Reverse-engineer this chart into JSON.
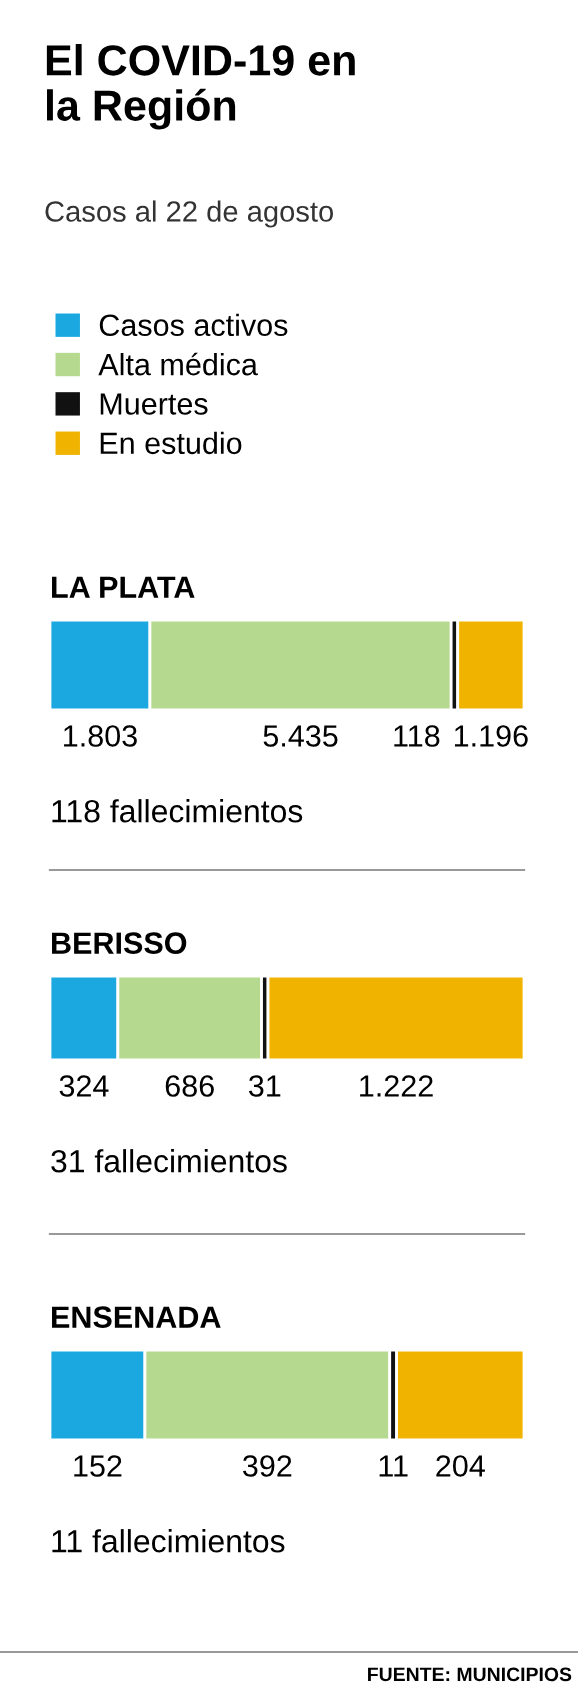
{
  "chart_data": [
    {
      "type": "bar",
      "orientation": "horizontal",
      "stacked": true,
      "title": "El COVID-19 en la Región",
      "subtitle": "Casos al 22 de agosto",
      "categories": [
        "LA PLATA"
      ],
      "legend": "top",
      "tick_labels": "y",
      "series": [
        {
          "name": "Casos activos",
          "color": "#1ba8e0",
          "values": [
            1803
          ],
          "value_labels": [
            "1.803"
          ]
        },
        {
          "name": "Alta médica",
          "color": "#b5da8f",
          "values": [
            5435
          ],
          "value_labels": [
            "5.435"
          ]
        },
        {
          "name": "Muertes",
          "color": "#111111",
          "values": [
            118
          ],
          "value_labels": [
            "118"
          ]
        },
        {
          "name": "En estudio",
          "color": "#f0b400",
          "values": [
            1196
          ],
          "value_labels": [
            "1.196"
          ]
        }
      ],
      "annotations": [
        "118 fallecimientos"
      ]
    },
    {
      "type": "bar",
      "orientation": "horizontal",
      "stacked": true,
      "categories": [
        "BERISSO"
      ],
      "tick_labels": "y",
      "series": [
        {
          "color": "#1ba8e0",
          "values": [
            324
          ],
          "value_labels": [
            "324"
          ]
        },
        {
          "color": "#b5da8f",
          "values": [
            686
          ],
          "value_labels": [
            "686"
          ]
        },
        {
          "color": "#111111",
          "values": [
            31
          ],
          "value_labels": [
            "31"
          ]
        },
        {
          "color": "#f0b400",
          "values": [
            1222
          ],
          "value_labels": [
            "1.222"
          ]
        }
      ],
      "annotations": [
        "31 fallecimientos"
      ]
    },
    {
      "type": "bar",
      "orientation": "horizontal",
      "stacked": true,
      "categories": [
        "ENSENADA"
      ],
      "tick_labels": "y",
      "series": [
        {
          "color": "#1ba8e0",
          "values": [
            152
          ],
          "value_labels": [
            "152"
          ]
        },
        {
          "color": "#b5da8f",
          "values": [
            392
          ],
          "value_labels": [
            "392"
          ]
        },
        {
          "color": "#111111",
          "values": [
            11
          ],
          "value_labels": [
            "11"
          ]
        },
        {
          "color": "#f0b400",
          "values": [
            204
          ],
          "value_labels": [
            "204"
          ]
        }
      ],
      "annotations": [
        "11 fallecimientos",
        "FUENTE: MUNICIPIOS"
      ]
    }
  ]
}
